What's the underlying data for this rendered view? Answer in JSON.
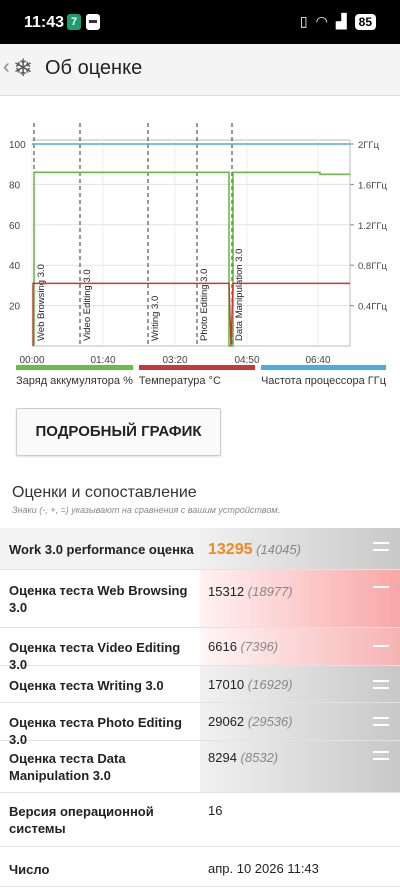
{
  "status_bar": {
    "time": "11:43",
    "notif_badge": "7",
    "battery": "85"
  },
  "app_bar": {
    "title": "Об оценке"
  },
  "chart_data": {
    "type": "line",
    "x_ticks": [
      "00:00",
      "01:40",
      "03:20",
      "04:50",
      "06:40"
    ],
    "y_left_ticks": [
      100,
      80,
      60,
      40,
      20
    ],
    "y_right_ticks": [
      "2ГГц",
      "1.6ГГц",
      "1.2ГГц",
      "0.8ГГц",
      "0.4ГГц"
    ],
    "ylim_left": [
      0,
      100
    ],
    "grid": true,
    "markers": [
      "Web Browsing 3.0",
      "Video Editing 3.0",
      "Writing 3.0",
      "Photo Editing 3.0",
      "Data Manipulation 3.0"
    ],
    "series": [
      {
        "name": "Заряд аккумулятора %",
        "color": "#6dbb45",
        "values": [
          86,
          86,
          86,
          86,
          85
        ]
      },
      {
        "name": "Температура °C",
        "color": "#c8373a",
        "values": [
          31,
          31,
          31,
          31,
          31
        ]
      },
      {
        "name": "Частота процессора ГГц",
        "color": "#46aee0",
        "values": [
          2.0,
          2.0,
          2.0,
          2.0,
          2.0
        ]
      }
    ]
  },
  "legend": [
    {
      "label": "Заряд аккумулятора %",
      "color": "#6dbb45"
    },
    {
      "label": "Температура °C",
      "color": "#c8373a"
    },
    {
      "label": "Частота процессора ГГц",
      "color": "#46aee0"
    }
  ],
  "detail_button": "ПОДРОБНЫЙ ГРАФИК",
  "section": {
    "title": "Оценки и сопоставление",
    "note": "Знаки (-, +, =) указывают на сравнения с вашим устройством."
  },
  "rows": [
    {
      "name": "Work 3.0 performance оценка",
      "score": "13295",
      "ref": "(14045)"
    },
    {
      "name": "Оценка теста Web Browsing 3.0",
      "score": "15312",
      "ref": "(18977)"
    },
    {
      "name": "Оценка теста Video Editing 3.0",
      "score": "6616",
      "ref": "(7396)"
    },
    {
      "name": "Оценка теста Writing 3.0",
      "score": "17010",
      "ref": "(16929)"
    },
    {
      "name": "Оценка теста Photo Editing 3.0",
      "score": "29062",
      "ref": "(29536)"
    },
    {
      "name": "Оценка теста Data Manipulation 3.0",
      "score": "8294",
      "ref": "(8532)"
    },
    {
      "name": "Версия операционной системы",
      "score": "16",
      "ref": ""
    },
    {
      "name": "Число",
      "score": "апр. 10 2026 11:43",
      "ref": ""
    }
  ]
}
